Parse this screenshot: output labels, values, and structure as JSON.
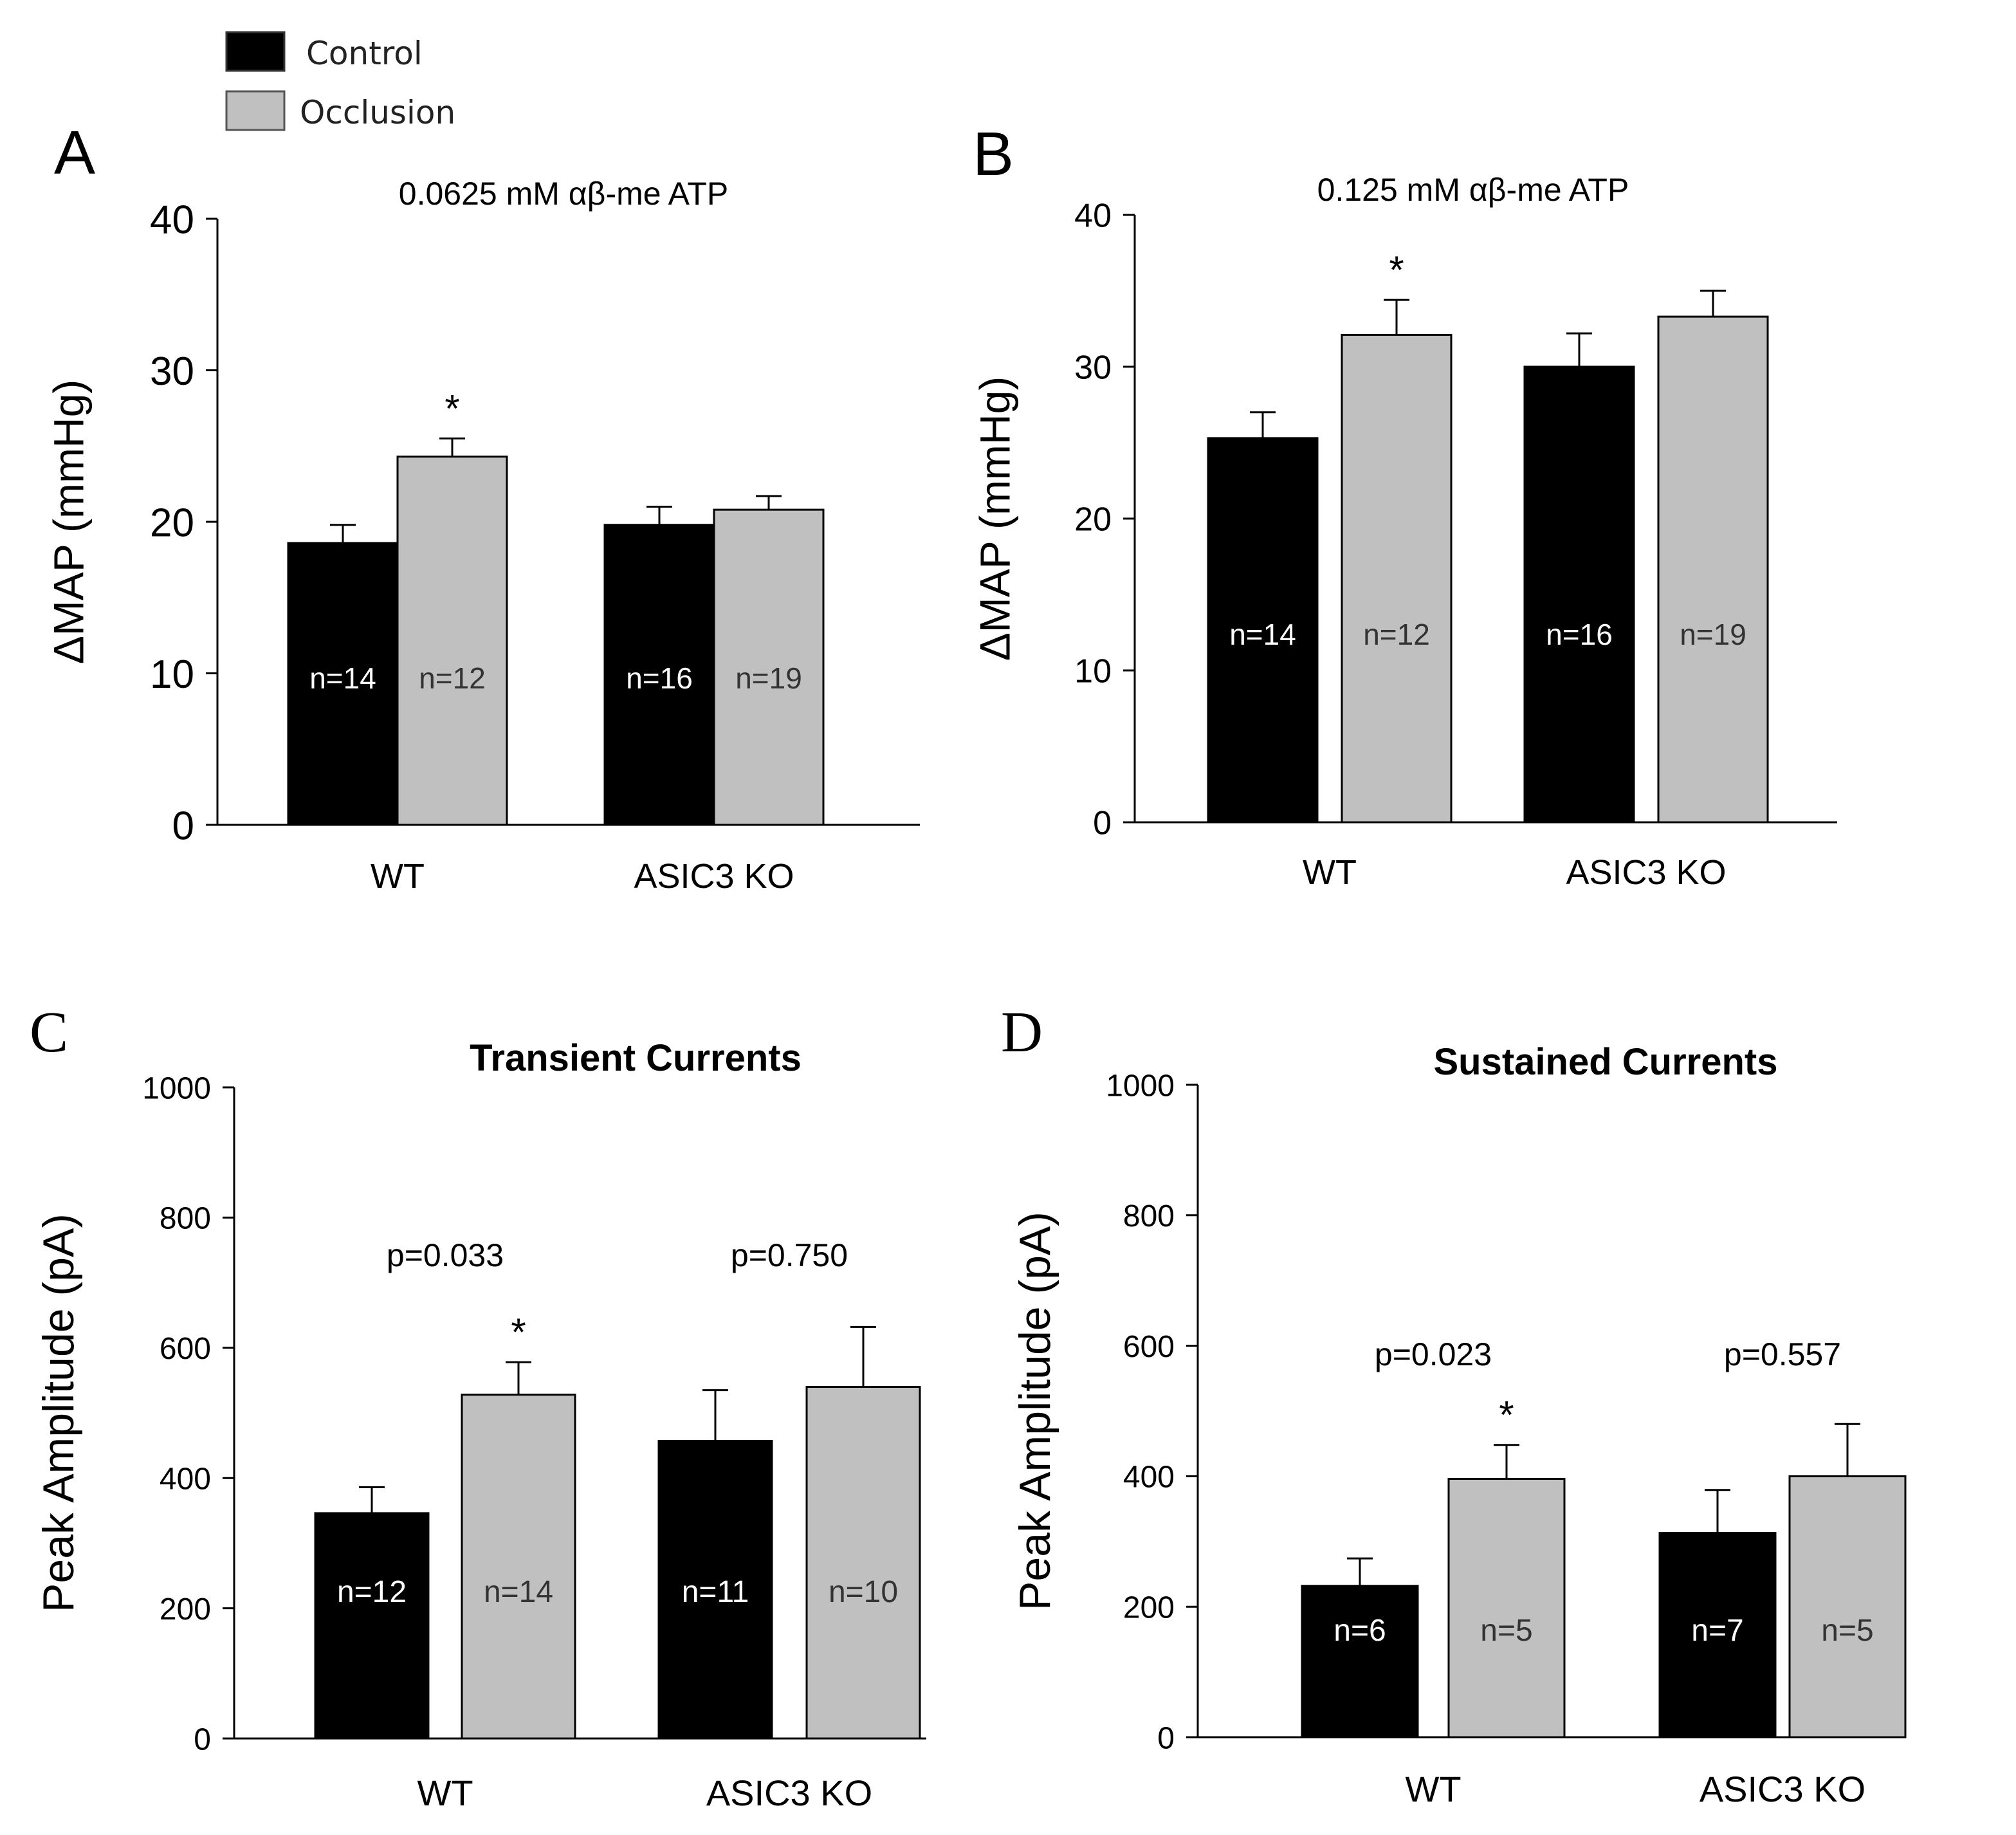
{
  "legend": {
    "items": [
      {
        "label": "Control",
        "color": "#000000"
      },
      {
        "label": "Occlusion",
        "color": "#c0c0c0"
      }
    ]
  },
  "colors": {
    "control": "#000000",
    "occlusion": "#c0c0c0",
    "control_n_text": "#ffffff",
    "occlusion_n_text": "#333333"
  },
  "chart_data": [
    {
      "panel": "A",
      "type": "bar",
      "title": "0.0625 mM αβ-me ATP",
      "ylabel": "ΔMAP (mmHg)",
      "xlabel": "",
      "ylim": [
        0,
        40
      ],
      "yticks": [
        "0",
        "10",
        "20",
        "30",
        "40"
      ],
      "categories": [
        "WT",
        "ASIC3 KO"
      ],
      "series": [
        {
          "name": "Control",
          "values": [
            18.6,
            19.8
          ],
          "errors": [
            1.2,
            1.2
          ],
          "n_labels": [
            "n=14",
            "n=16"
          ],
          "marks": [
            "",
            ""
          ],
          "p_values": [
            "",
            ""
          ]
        },
        {
          "name": "Occlusion",
          "values": [
            24.3,
            20.8
          ],
          "errors": [
            1.2,
            0.9
          ],
          "n_labels": [
            "n=12",
            "n=19"
          ],
          "marks": [
            "*",
            ""
          ],
          "p_values": [
            "",
            ""
          ]
        }
      ],
      "p_labels": []
    },
    {
      "panel": "B",
      "type": "bar",
      "title": "0.125 mM αβ-me ATP",
      "ylabel": "ΔMAP (mmHg)",
      "xlabel": "",
      "ylim": [
        0,
        40
      ],
      "yticks": [
        "0",
        "10",
        "20",
        "30",
        "40"
      ],
      "categories": [
        "WT",
        "ASIC3 KO"
      ],
      "series": [
        {
          "name": "Control",
          "values": [
            25.3,
            30.0
          ],
          "errors": [
            1.7,
            2.2
          ],
          "n_labels": [
            "n=14",
            "n=16"
          ],
          "marks": [
            "",
            ""
          ]
        },
        {
          "name": "Occlusion",
          "values": [
            32.1,
            33.3
          ],
          "errors": [
            2.3,
            1.7
          ],
          "n_labels": [
            "n=12",
            "n=19"
          ],
          "marks": [
            "*",
            ""
          ]
        }
      ],
      "p_labels": []
    },
    {
      "panel": "C",
      "type": "bar",
      "title": "Transient Currents",
      "ylabel": "Peak Amplitude (pA)",
      "xlabel": "",
      "ylim": [
        0,
        1000
      ],
      "yticks": [
        "0",
        "200",
        "400",
        "600",
        "800",
        "1000"
      ],
      "categories": [
        "WT",
        "ASIC3 KO"
      ],
      "series": [
        {
          "name": "Control",
          "values": [
            346,
            457
          ],
          "errors": [
            40,
            78
          ],
          "n_labels": [
            "n=12",
            "n=11"
          ],
          "marks": [
            "",
            ""
          ]
        },
        {
          "name": "Occlusion",
          "values": [
            528,
            540
          ],
          "errors": [
            50,
            92
          ],
          "n_labels": [
            "n=14",
            "n=10"
          ],
          "marks": [
            "*",
            ""
          ]
        }
      ],
      "p_labels": [
        "p=0.033",
        "p=0.750"
      ]
    },
    {
      "panel": "D",
      "type": "bar",
      "title": "Sustained Currents",
      "ylabel": "Peak Amplitude (pA)",
      "xlabel": "",
      "ylim": [
        0,
        1000
      ],
      "yticks": [
        "0",
        "200",
        "400",
        "600",
        "800",
        "1000"
      ],
      "categories": [
        "WT",
        "ASIC3 KO"
      ],
      "series": [
        {
          "name": "Control",
          "values": [
            232,
            313
          ],
          "errors": [
            42,
            66
          ],
          "n_labels": [
            "n=6",
            "n=7"
          ],
          "marks": [
            "",
            ""
          ]
        },
        {
          "name": "Occlusion",
          "values": [
            396,
            400
          ],
          "errors": [
            52,
            80
          ],
          "n_labels": [
            "n=5",
            "n=5"
          ],
          "marks": [
            "*",
            ""
          ]
        }
      ],
      "p_labels": [
        "p=0.023",
        "p=0.557"
      ]
    }
  ]
}
